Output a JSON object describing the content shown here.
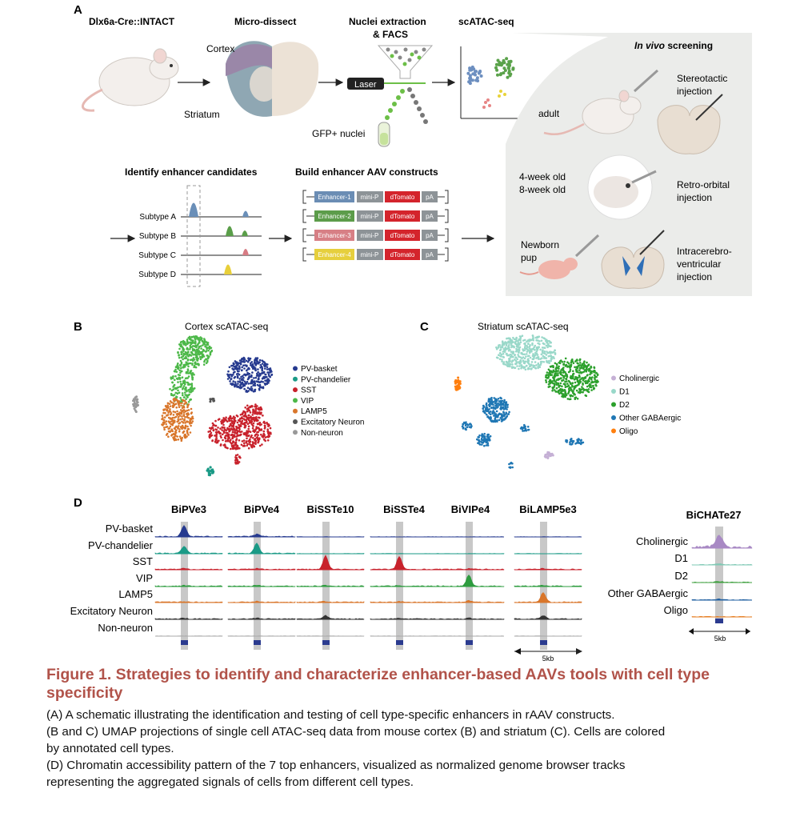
{
  "panels": {
    "a": "A",
    "b": "B",
    "c": "C",
    "d": "D"
  },
  "panel_a": {
    "mouse_line": "Dlx6a-Cre::INTACT",
    "microdissect": "Micro-dissect",
    "cortex": "Cortex",
    "striatum": "Striatum",
    "nuclei_line1": "Nuclei extraction",
    "nuclei_line2": "& FACS",
    "laser": "Laser",
    "gfp_nuclei": "GFP+ nuclei",
    "scatac": "scATAC-seq",
    "identify": "Identify enhancer candidates",
    "build": "Build enhancer AAV constructs",
    "subtypes": [
      "Subtype A",
      "Subtype B",
      "Subtype C",
      "Subtype D"
    ],
    "constructs": [
      {
        "enhancer": "Enhancer-1",
        "color": "#6b8db4"
      },
      {
        "enhancer": "Enhancer-2",
        "color": "#5c9c4a"
      },
      {
        "enhancer": "Enhancer-3",
        "color": "#d77f85"
      },
      {
        "enhancer": "Enhancer-4",
        "color": "#e6cf3d"
      }
    ],
    "minip": "mini-P",
    "dtomato": "dTomato",
    "pa": "pA",
    "invivo_em": "In vivo",
    "invivo_rest": " screening",
    "adult": "adult",
    "stereotactic1": "Stereotactic",
    "stereotactic2": "injection",
    "week4": "4-week old",
    "week8": "8-week old",
    "retro1": "Retro-orbital",
    "retro2": "injection",
    "newborn1": "Newborn",
    "newborn2": "pup",
    "icv1": "Intracerebro-",
    "icv2": "ventricular",
    "icv3": "injection"
  },
  "panel_b": {
    "title": "Cortex scATAC-seq",
    "legend": [
      {
        "label": "PV-basket",
        "color": "#263a8f"
      },
      {
        "label": "PV-chandelier",
        "color": "#1a9a86"
      },
      {
        "label": "SST",
        "color": "#c8222c"
      },
      {
        "label": "VIP",
        "color": "#4cb848"
      },
      {
        "label": "LAMP5",
        "color": "#d9762b"
      },
      {
        "label": "Excitatory Neuron",
        "color": "#555555"
      },
      {
        "label": "Non-neuron",
        "color": "#999999"
      }
    ]
  },
  "panel_c": {
    "title": "Striatum scATAC-seq",
    "legend": [
      {
        "label": "Cholinergic",
        "color": "#c5b0d5"
      },
      {
        "label": "D1",
        "color": "#99d8c9"
      },
      {
        "label": "D2",
        "color": "#2ca02c"
      },
      {
        "label": "Other GABAergic",
        "color": "#1f77b4"
      },
      {
        "label": "Oligo",
        "color": "#ff7f0e"
      }
    ]
  },
  "panel_d": {
    "enhancers": [
      "BiPVe3",
      "BiPVe4",
      "BiSSTe10",
      "BiSSTe4",
      "BiVIPe4",
      "BiLAMP5e3"
    ],
    "rows": [
      "PV-basket",
      "PV-chandelier",
      "SST",
      "VIP",
      "LAMP5",
      "Excitatory Neuron",
      "Non-neuron"
    ],
    "row_colors": [
      "#263a8f",
      "#1a9a86",
      "#c8222c",
      "#2e9c3f",
      "#d9762b",
      "#333333",
      "#aaaaaa"
    ],
    "scale": "5kb",
    "right_title": "BiCHATe27",
    "right_rows": [
      "Cholinergic",
      "D1",
      "D2",
      "Other GABAergic",
      "Oligo"
    ],
    "right_colors": [
      "#a889c4",
      "#7fc8b4",
      "#3e9f3e",
      "#1f5fa0",
      "#e67e22"
    ],
    "right_scale": "5kb"
  },
  "caption": {
    "title_line1": "Figure 1. Strategies to identify and characterize enhancer-based AAVs tools with cell type",
    "title_line2": "specificity",
    "a": "(A) A schematic illustrating the identification and testing of cell type-specific enhancers in rAAV constructs.",
    "bc_line1": "(B and C) UMAP projections of single cell ATAC-seq data from mouse cortex (B) and striatum (C). Cells are colored",
    "bc_line2": "by annotated cell types.",
    "d_line1": "(D) Chromatin accessibility pattern of the 7 top enhancers, visualized as normalized genome browser tracks",
    "d_line2": "representing the aggregated signals of cells from different cell types."
  }
}
